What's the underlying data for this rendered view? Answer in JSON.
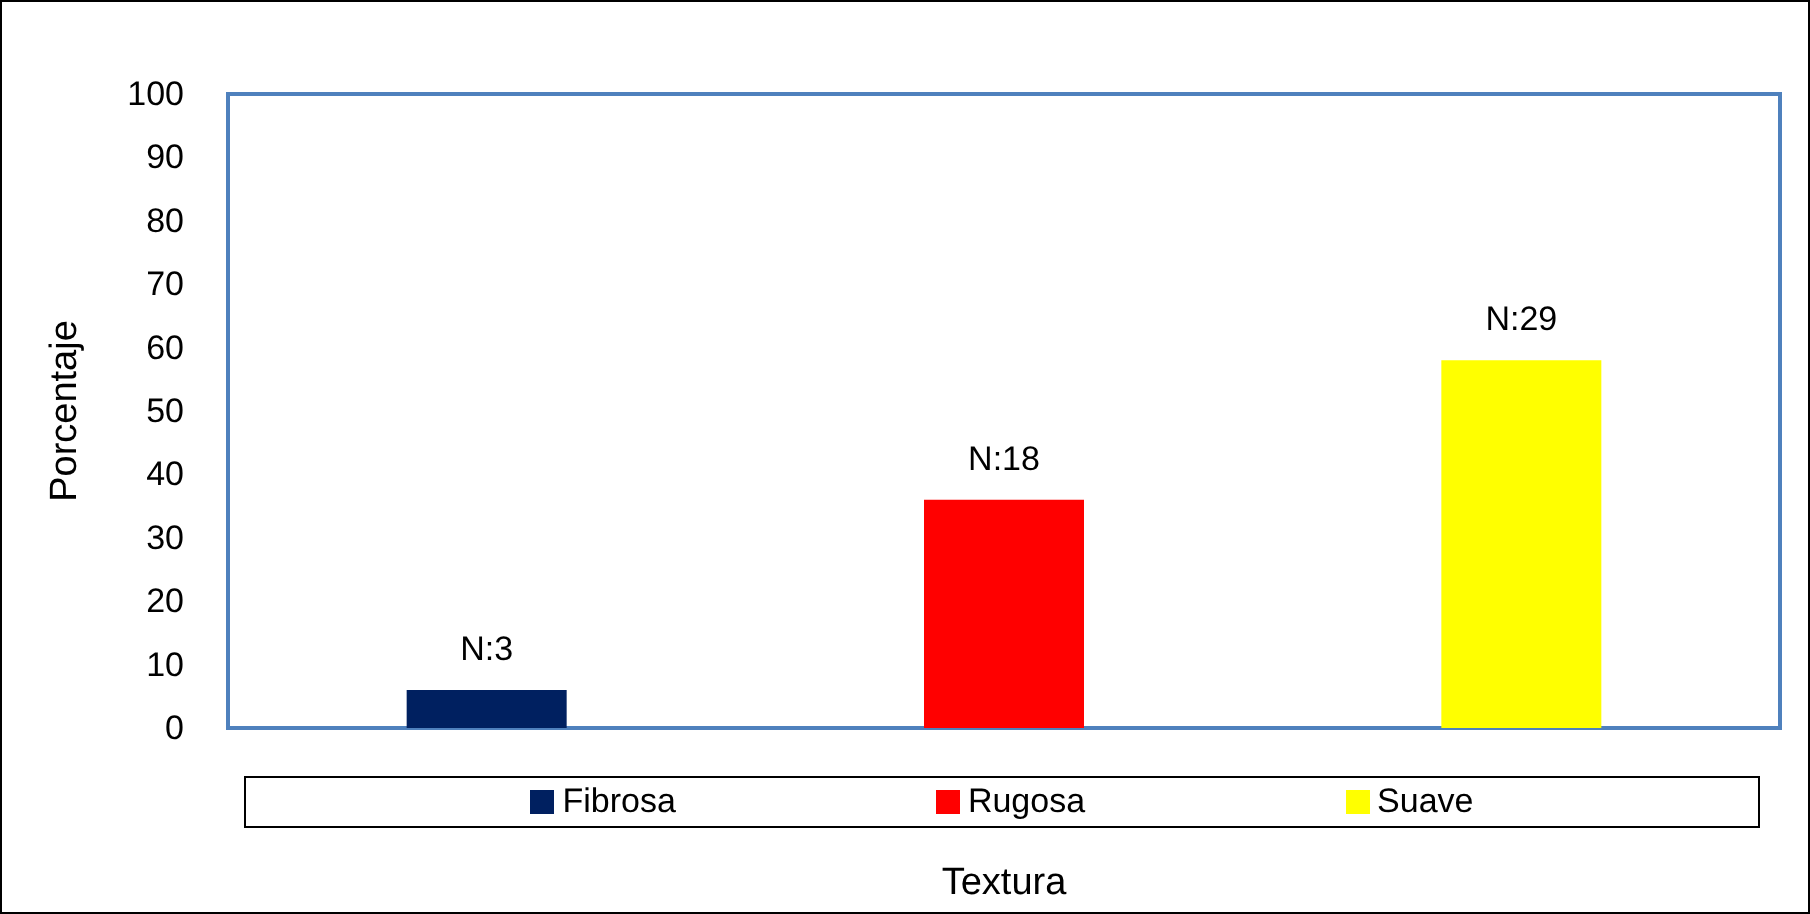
{
  "chart_data": {
    "type": "bar",
    "xlabel": "Textura",
    "ylabel": "Porcentaje",
    "categories": [
      null,
      null,
      null
    ],
    "values": [
      6,
      36,
      58
    ],
    "colors": [
      "#002060",
      "#ff0000",
      "#ffff00"
    ],
    "annotations": [
      "N:3",
      "N:18",
      "N:29",
      "Fibrosa",
      "Rugosa",
      "Suave"
    ],
    "ylim": [
      0,
      100
    ],
    "yticks": [
      0,
      10,
      20,
      30,
      40,
      50,
      60,
      70,
      80,
      90,
      100
    ],
    "grid": false
  }
}
